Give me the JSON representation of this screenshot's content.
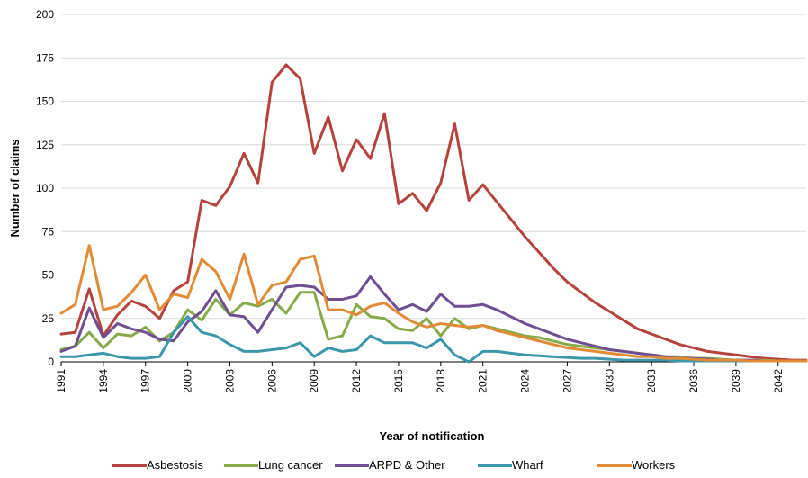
{
  "chart_data": {
    "type": "line",
    "title": "",
    "xlabel": "Year of notification",
    "ylabel": "Number of claims",
    "ylim": [
      0,
      200
    ],
    "xlim": [
      1991,
      2044
    ],
    "yticks": [
      "0",
      "25",
      "50",
      "75",
      "100",
      "125",
      "150",
      "175",
      "200"
    ],
    "xticks": [
      "1991",
      "1994",
      "1997",
      "2000",
      "2003",
      "2006",
      "2009",
      "2012",
      "2015",
      "2018",
      "2021",
      "2024",
      "2027",
      "2030",
      "2033",
      "2036",
      "2039",
      "2042"
    ],
    "grid": "horizontal",
    "legend_position": "bottom",
    "x": [
      1991,
      1992,
      1993,
      1994,
      1995,
      1996,
      1997,
      1998,
      1999,
      2000,
      2001,
      2002,
      2003,
      2004,
      2005,
      2006,
      2007,
      2008,
      2009,
      2010,
      2011,
      2012,
      2013,
      2014,
      2015,
      2016,
      2017,
      2018,
      2019,
      2020,
      2021,
      2022,
      2023,
      2024,
      2025,
      2026,
      2027,
      2028,
      2029,
      2030,
      2031,
      2032,
      2033,
      2034,
      2035,
      2036,
      2037,
      2038,
      2039,
      2040,
      2041,
      2042,
      2043,
      2044
    ],
    "series": [
      {
        "name": "Asbestosis",
        "color": "#b5423d",
        "values": [
          16,
          17,
          42,
          15,
          27,
          35,
          32,
          25,
          41,
          46,
          93,
          90,
          101,
          120,
          103,
          161,
          171,
          163,
          120,
          141,
          110,
          128,
          117,
          143,
          91,
          97,
          87,
          103,
          137,
          93,
          102,
          92,
          82,
          72,
          63,
          54,
          46,
          40,
          34,
          29,
          24,
          19,
          16,
          13,
          10,
          8,
          6,
          5,
          4,
          3,
          2,
          1.5,
          1,
          1
        ]
      },
      {
        "name": "Lung cancer",
        "color": "#87ab4b",
        "values": [
          7,
          9,
          17,
          8,
          16,
          15,
          20,
          12,
          17,
          30,
          24,
          36,
          27,
          34,
          32,
          36,
          28,
          40,
          40,
          13,
          15,
          33,
          26,
          25,
          19,
          18,
          25,
          15,
          25,
          19,
          21,
          19,
          17,
          15,
          14,
          12,
          10,
          9,
          8,
          7,
          6,
          5,
          4,
          3,
          3,
          2,
          2,
          1.5,
          1,
          1,
          1,
          0.5,
          0.5,
          0.5
        ]
      },
      {
        "name": "ARPD & Other",
        "color": "#6f4f92",
        "values": [
          6,
          9,
          31,
          14,
          22,
          19,
          17,
          13,
          12,
          23,
          29,
          41,
          27,
          26,
          17,
          30,
          43,
          44,
          43,
          36,
          36,
          38,
          49,
          39,
          30,
          33,
          29,
          39,
          32,
          32,
          33,
          30,
          26,
          22,
          19,
          16,
          13,
          11,
          9,
          7,
          6,
          5,
          4,
          3,
          2,
          2,
          1.5,
          1,
          1,
          1,
          0.5,
          0.5,
          0.5,
          0.5
        ]
      },
      {
        "name": "Wharf",
        "color": "#3d97ac",
        "values": [
          3,
          3,
          4,
          5,
          3,
          2,
          2,
          3,
          17,
          26,
          17,
          15,
          10,
          6,
          6,
          7,
          8,
          11,
          3,
          8,
          6,
          7,
          15,
          11,
          11,
          11,
          8,
          13,
          4,
          0,
          6,
          6,
          5,
          4,
          3.5,
          3,
          2.5,
          2,
          2,
          1.5,
          1,
          1,
          1,
          1,
          0.5,
          0.5,
          0.5,
          0.5,
          0.5,
          0.5,
          0.5,
          0.5,
          0.5,
          0.5
        ]
      },
      {
        "name": "Workers",
        "color": "#e18b37",
        "values": [
          28,
          33,
          67,
          30,
          32,
          40,
          50,
          30,
          39,
          37,
          59,
          52,
          36,
          62,
          33,
          44,
          46,
          59,
          61,
          30,
          30,
          27,
          32,
          34,
          28,
          23,
          20,
          22,
          21,
          20,
          21,
          18,
          16,
          14,
          12,
          10,
          8,
          7,
          6,
          5,
          4,
          3,
          3,
          2,
          2,
          1.5,
          1,
          1,
          1,
          0.5,
          0.5,
          0.5,
          0.5,
          0.5
        ]
      }
    ]
  }
}
